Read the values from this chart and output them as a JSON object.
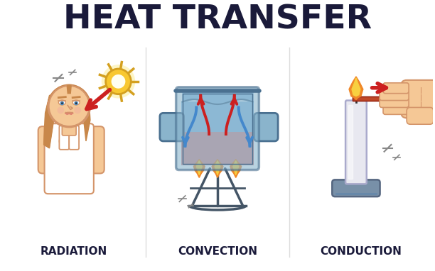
{
  "title": "HEAT TRANSFER",
  "title_fontsize": 34,
  "title_fontweight": "black",
  "title_color": "#1a1a3a",
  "background_color": "#ffffff",
  "panel_labels": [
    "RADIATION",
    "CONVECTION",
    "CONDUCTION"
  ],
  "panel_label_fontsize": 11,
  "panel_label_fontweight": "black",
  "panel_label_color": "#1a1a3a",
  "divider_color": "#dddddd",
  "skin_color": "#f5c896",
  "skin_dark": "#d4956a",
  "skin_mid": "#e8aa78",
  "hair_color": "#c8874a",
  "shirt_color": "#ffffff",
  "shirt_edge": "#cccccc",
  "eye_color": "#5090c8",
  "lip_color": "#e08070",
  "sun_color": "#f8c830",
  "sun_inner": "#ffffff",
  "sun_outline": "#d4a020",
  "arrow_red": "#cc2020",
  "arrow_blue": "#4488cc",
  "pot_fill": "#8ab4cc",
  "pot_outline": "#4a7090",
  "pot_rim": "#6090a8",
  "water_blue": "#90c0e0",
  "water_pink": "#d8907a",
  "water_blend": "#b8a0c0",
  "stand_color": "#445566",
  "flame_orange": "#f08828",
  "flame_yellow": "#f8d040",
  "candle_color": "#e8e8f0",
  "candle_edge": "#aaaacc",
  "candle_base": "#7890a8",
  "hand_color": "#f5c896",
  "hand_edge": "#d4956a",
  "rod_color": "#c04828",
  "sparkle_color": "#888888"
}
